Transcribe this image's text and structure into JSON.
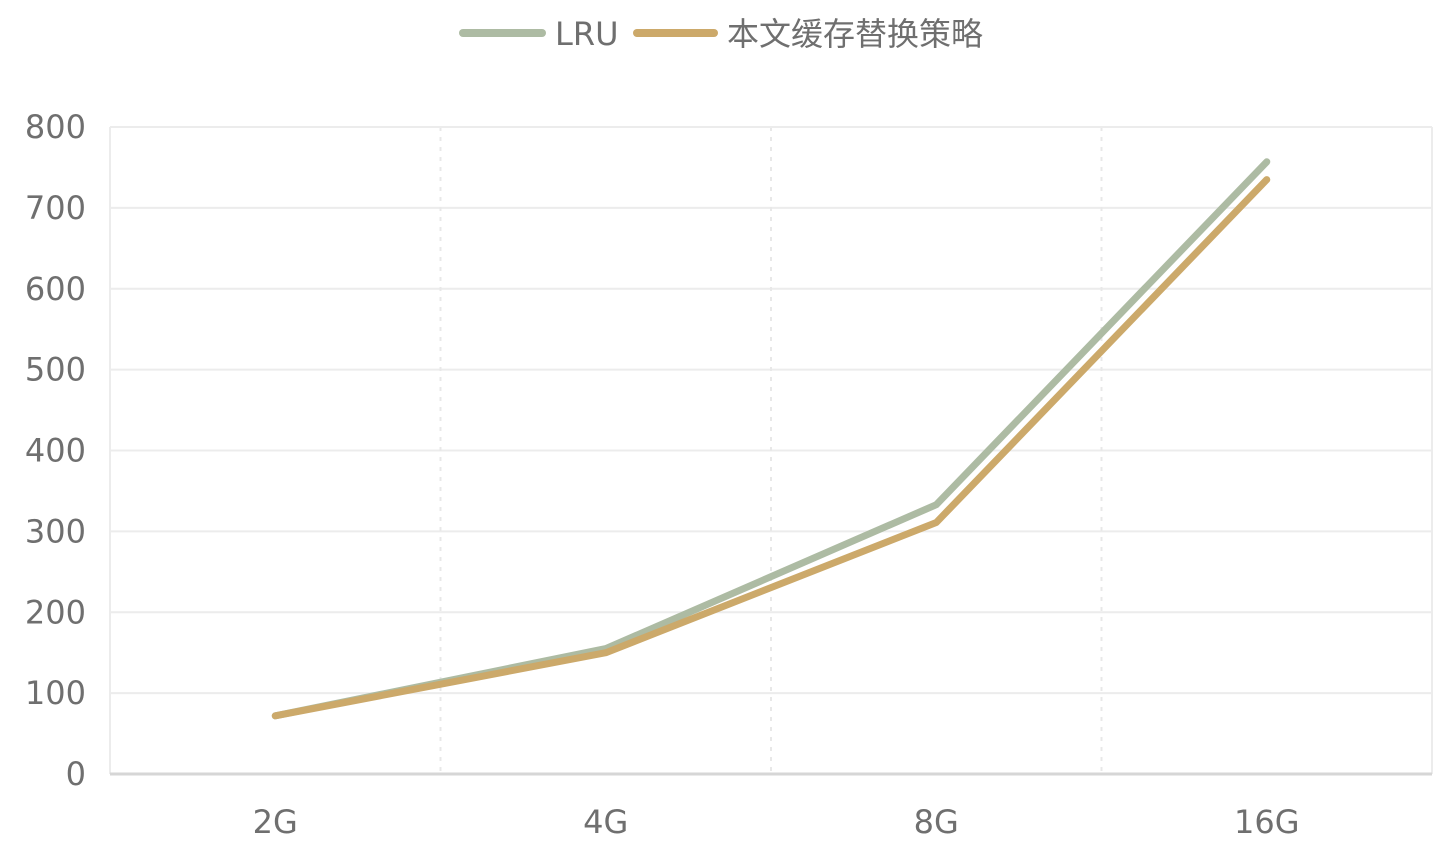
{
  "chart_data": {
    "type": "line",
    "title": "",
    "xlabel": "",
    "ylabel": "",
    "categories": [
      "2G",
      "4G",
      "8G",
      "16G"
    ],
    "ylim": [
      0,
      800
    ],
    "yticks": [
      0,
      100,
      200,
      300,
      400,
      500,
      600,
      700,
      800
    ],
    "grid": true,
    "legend": "top-center",
    "series": [
      {
        "name": "LRU",
        "values": [
          72,
          155,
          333,
          757
        ],
        "color": "#adbba3"
      },
      {
        "name": "本文缓存替换策略",
        "values": [
          72,
          150,
          311,
          735
        ],
        "color": "#cca96a"
      }
    ]
  }
}
